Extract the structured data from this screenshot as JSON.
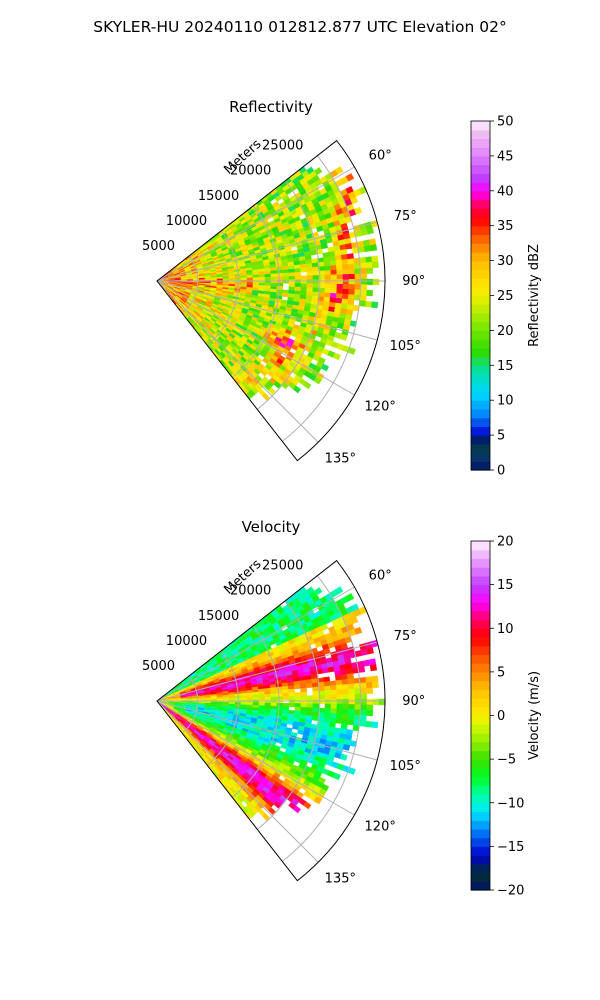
{
  "figure": {
    "title": "SKYLER-HU  20240110  012812.877 UTC Elevation 02°"
  },
  "chart_data": [
    {
      "type": "heatmap",
      "projection": "polar sector (azimuth vs range)",
      "title": "Reflectivity",
      "range_axis_label": "Meters",
      "range_ticks": [
        5000,
        10000,
        15000,
        20000,
        25000
      ],
      "range_tick_labels": [
        "5000",
        "10000",
        "15000",
        "20000",
        "25000"
      ],
      "range_lim": [
        0,
        28000
      ],
      "azimuth_ticks_deg": [
        60,
        75,
        90,
        105,
        120,
        135
      ],
      "azimuth_tick_labels": [
        "60°",
        "75°",
        "90°",
        "105°",
        "120°",
        "135°"
      ],
      "azimuth_lim_deg": [
        52,
        142
      ],
      "grid": true,
      "colorbar": {
        "label": "Reflectivity dBZ",
        "min": 0,
        "max": 50,
        "ticks": [
          0,
          5,
          10,
          15,
          20,
          25,
          30,
          35,
          40,
          45,
          50
        ],
        "tick_labels": [
          "0",
          "5",
          "10",
          "15",
          "20",
          "25",
          "30",
          "35",
          "40",
          "45",
          "50"
        ],
        "colormap_stops": [
          {
            "v": 0,
            "color": "#061466"
          },
          {
            "v": 2.5,
            "color": "#08406a"
          },
          {
            "v": 4,
            "color": "#003030"
          },
          {
            "v": 5,
            "color": "#0000d0"
          },
          {
            "v": 8,
            "color": "#0088ff"
          },
          {
            "v": 11,
            "color": "#00d8ff"
          },
          {
            "v": 14,
            "color": "#00e0b0"
          },
          {
            "v": 17,
            "color": "#2edc00"
          },
          {
            "v": 21,
            "color": "#88e800"
          },
          {
            "v": 24,
            "color": "#d8f000"
          },
          {
            "v": 26,
            "color": "#ffe800"
          },
          {
            "v": 30,
            "color": "#ffbc00"
          },
          {
            "v": 33,
            "color": "#ff6a00"
          },
          {
            "v": 36,
            "color": "#ff0000"
          },
          {
            "v": 38,
            "color": "#ff0060"
          },
          {
            "v": 40,
            "color": "#ff00ff"
          },
          {
            "v": 42,
            "color": "#c040ff"
          },
          {
            "v": 45,
            "color": "#e080ff"
          },
          {
            "v": 48,
            "color": "#f0b8f0"
          },
          {
            "v": 50,
            "color": "#fff0ff"
          }
        ]
      },
      "field_description": "Scattered echoes of 15-35 dBZ across the sector; a curved band of 35-45 dBZ near 20000-25000 m around 60-100° and a band of 35-45 dBZ near 15000-20000 m around 110-125°; strong returns near the radar."
    },
    {
      "type": "heatmap",
      "projection": "polar sector (azimuth vs range)",
      "title": "Velocity",
      "range_axis_label": "Meters",
      "range_ticks": [
        5000,
        10000,
        15000,
        20000,
        25000
      ],
      "range_tick_labels": [
        "5000",
        "10000",
        "15000",
        "20000",
        "25000"
      ],
      "range_lim": [
        0,
        28000
      ],
      "azimuth_ticks_deg": [
        60,
        75,
        90,
        105,
        120,
        135
      ],
      "azimuth_tick_labels": [
        "60°",
        "75°",
        "90°",
        "105°",
        "120°",
        "135°"
      ],
      "azimuth_lim_deg": [
        52,
        142
      ],
      "grid": true,
      "colorbar": {
        "label": "Velocity (m/s)",
        "min": -20,
        "max": 20,
        "ticks": [
          -20,
          -15,
          -10,
          -5,
          0,
          5,
          10,
          15,
          20
        ],
        "tick_labels": [
          "−20",
          "−15",
          "−10",
          "−5",
          "0",
          "5",
          "10",
          "15",
          "20"
        ],
        "colormap_stops": [
          {
            "v": -20,
            "color": "#061466"
          },
          {
            "v": -18,
            "color": "#003030"
          },
          {
            "v": -16,
            "color": "#0000d0"
          },
          {
            "v": -13,
            "color": "#0088ff"
          },
          {
            "v": -11,
            "color": "#00e8ff"
          },
          {
            "v": -9,
            "color": "#00ffa0"
          },
          {
            "v": -7,
            "color": "#00ff20"
          },
          {
            "v": -5,
            "color": "#3ce000"
          },
          {
            "v": -3,
            "color": "#90f000"
          },
          {
            "v": -1,
            "color": "#d8f800"
          },
          {
            "v": 0,
            "color": "#ffee00"
          },
          {
            "v": 3,
            "color": "#ffc000"
          },
          {
            "v": 6,
            "color": "#ff6a00"
          },
          {
            "v": 9,
            "color": "#ff0000"
          },
          {
            "v": 11,
            "color": "#ff0060"
          },
          {
            "v": 13,
            "color": "#ff00ff"
          },
          {
            "v": 15,
            "color": "#c040ff"
          },
          {
            "v": 17,
            "color": "#e080ff"
          },
          {
            "v": 20,
            "color": "#fff0ff"
          }
        ]
      },
      "field_description": "Outbound velocities of 10-20 m/s along northern and southern flanks; inbound velocities of -12 to -5 m/s in the centre of the sector around 90-110°; near-zero values along the 90° radial."
    }
  ]
}
